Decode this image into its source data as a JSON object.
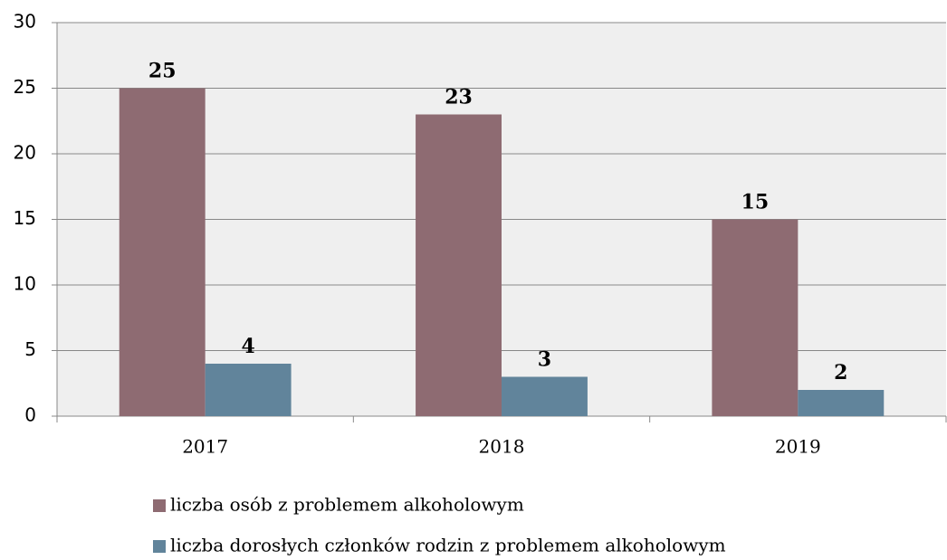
{
  "chart_data": {
    "type": "bar",
    "categories": [
      "2017",
      "2018",
      "2019"
    ],
    "series": [
      {
        "name": "liczba osób z problemem alkoholowym",
        "color": "#8e6b72",
        "values": [
          25,
          23,
          15
        ]
      },
      {
        "name": "liczba dorosłych członków rodzin z problemem alkoholowym",
        "color": "#61849b",
        "values": [
          4,
          3,
          2
        ]
      }
    ],
    "ylim": [
      0,
      30
    ],
    "yticks": [
      0,
      5,
      10,
      15,
      20,
      25,
      30
    ],
    "grid": true,
    "legend": "bottom"
  }
}
